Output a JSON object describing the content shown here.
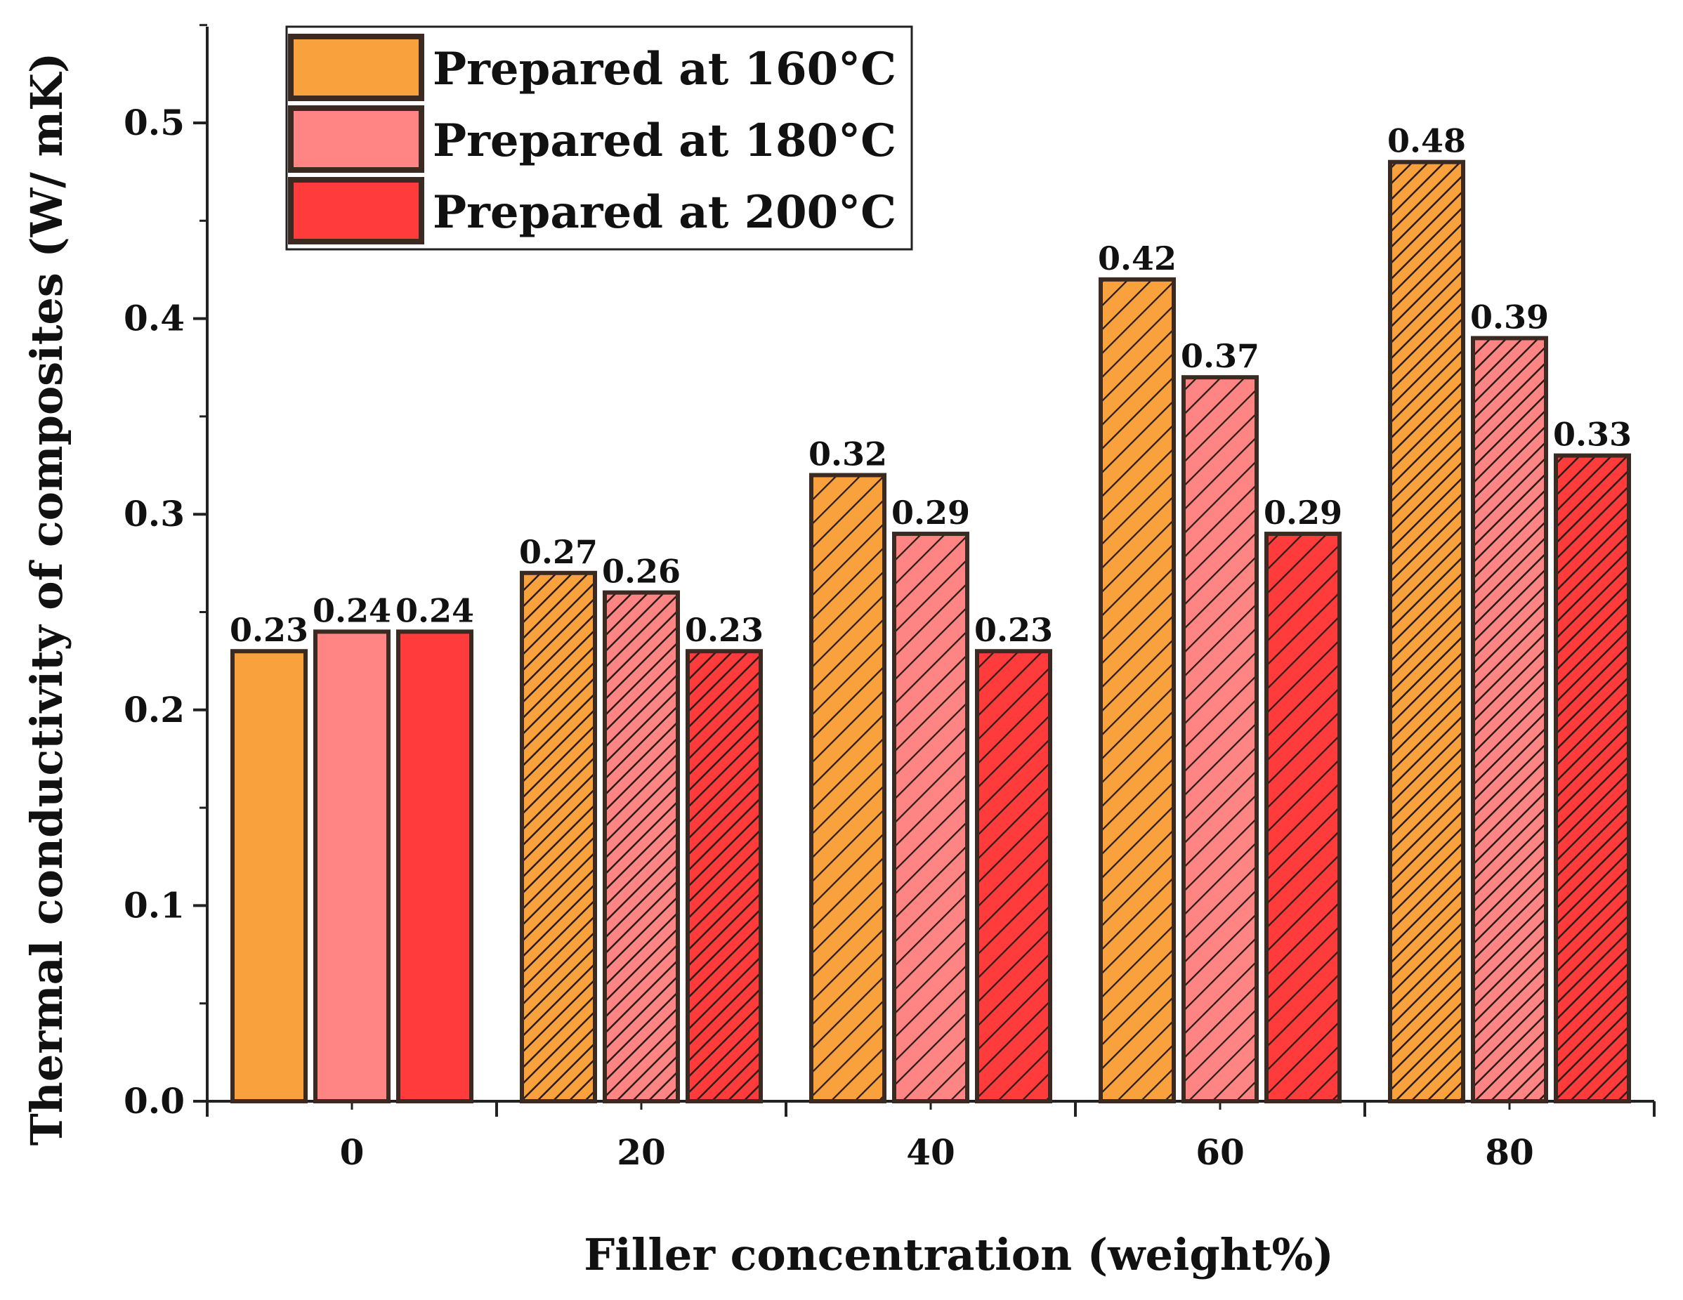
{
  "chart_data": {
    "type": "bar",
    "xlabel": "Filler concentration (weight%)",
    "ylabel": "Thermal conductivity of composites (W/ mK)",
    "categories": [
      "0",
      "20",
      "40",
      "60",
      "80"
    ],
    "ylim": [
      0,
      0.55
    ],
    "yticks": [
      "0.0",
      "0.1",
      "0.2",
      "0.3",
      "0.4",
      "0.5"
    ],
    "yticks_values": [
      0,
      0.1,
      0.2,
      0.3,
      0.4,
      0.5
    ],
    "legend_position": "top-left",
    "grid": false,
    "series": [
      {
        "name": "Prepared at 160°C",
        "color": "#F9A13C",
        "values": [
          0.23,
          0.27,
          0.32,
          0.42,
          0.48
        ],
        "labels": [
          "0.23",
          "0.27",
          "0.32",
          "0.42",
          "0.48"
        ]
      },
      {
        "name": "Prepared at 180°C",
        "color": "#FF8585",
        "values": [
          0.24,
          0.26,
          0.29,
          0.37,
          0.39
        ],
        "labels": [
          "0.24",
          "0.26",
          "0.29",
          "0.37",
          "0.39"
        ]
      },
      {
        "name": "Prepared at 200°C",
        "color": "#FF3B3B",
        "values": [
          0.24,
          0.23,
          0.23,
          0.29,
          0.33
        ],
        "labels": [
          "0.24",
          "0.23",
          "0.23",
          "0.29",
          "0.33"
        ]
      }
    ],
    "hatch": [
      [
        "none",
        "dense",
        "sparse",
        "sparse",
        "dense"
      ],
      [
        "none",
        "dense",
        "sparse",
        "sparse",
        "dense"
      ],
      [
        "none",
        "dense",
        "sparse",
        "sparse",
        "dense"
      ]
    ],
    "colors": {
      "axis": "#222222",
      "bar_stroke": "#3a2a22",
      "hatch_line": "#2a1a14"
    }
  }
}
